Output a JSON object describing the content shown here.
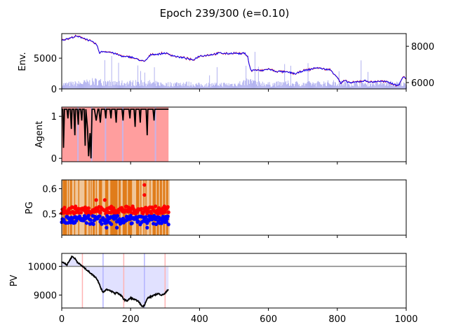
{
  "figure": {
    "title": "Epoch 239/300 (e=0.10)"
  },
  "colors": {
    "price": "#0000ff",
    "price_overlay": "#ff0000",
    "volume": "#b3b3f0",
    "agent_line": "#000000",
    "agent_fill": "#ff9e9e",
    "pg_fill": "#e07c1a",
    "pg_up": "#ff0000",
    "pg_down": "#0000ff",
    "pv_line": "#000000",
    "pv_ref": "#808080",
    "pv_fill": "#e1e1ff",
    "marker_red": "#ffb3b3",
    "marker_blue": "#b3b3ff"
  },
  "chart_data": [
    {
      "id": "env",
      "type": "line",
      "ylabel": "Env.",
      "xlim": [
        0,
        1000
      ],
      "ylim": [
        0,
        9000
      ],
      "yticks": [
        0,
        5000
      ],
      "y2lim": [
        5650,
        8700
      ],
      "y2ticks": [
        6000,
        8000
      ],
      "price": {
        "x": [
          0,
          20,
          40,
          60,
          80,
          100,
          110,
          120,
          140,
          160,
          180,
          200,
          220,
          240,
          260,
          280,
          300,
          320,
          340,
          360,
          380,
          400,
          420,
          440,
          460,
          480,
          500,
          520,
          530,
          540,
          545,
          550,
          560,
          580,
          600,
          620,
          640,
          660,
          680,
          700,
          720,
          740,
          760,
          780,
          800,
          810,
          820,
          840,
          860,
          880,
          900,
          920,
          940,
          960,
          970,
          980,
          990,
          1000
        ],
        "values": [
          8350,
          8420,
          8550,
          8480,
          8320,
          8120,
          7650,
          7720,
          7680,
          7560,
          7420,
          7420,
          7280,
          7150,
          7560,
          7560,
          7630,
          7500,
          7400,
          7350,
          7230,
          7470,
          7500,
          7560,
          7630,
          7590,
          7630,
          7580,
          7630,
          7450,
          6900,
          6650,
          6700,
          6650,
          6750,
          6620,
          6600,
          6560,
          6480,
          6650,
          6720,
          6820,
          6750,
          6700,
          6300,
          5950,
          6100,
          5980,
          6050,
          6100,
          6020,
          6080,
          6050,
          5950,
          5850,
          5900,
          6300,
          6250
        ]
      },
      "volume": {
        "x": [
          0,
          50,
          100,
          150,
          200,
          250,
          300,
          350,
          400,
          450,
          500,
          530,
          550,
          600,
          650,
          700,
          750,
          800,
          850,
          900,
          950,
          1000
        ],
        "values": [
          900,
          1100,
          1500,
          1100,
          1200,
          1200,
          900,
          1100,
          800,
          900,
          900,
          1300,
          1500,
          900,
          1100,
          1000,
          1100,
          1200,
          1000,
          1100,
          1100,
          900
        ]
      }
    },
    {
      "id": "agent",
      "type": "line",
      "ylabel": "Agent",
      "xlim": [
        0,
        1000
      ],
      "ylim": [
        -0.08,
        1.22
      ],
      "yticks": [
        0,
        1
      ],
      "x": [
        0,
        3,
        5,
        8,
        10,
        15,
        18,
        20,
        25,
        28,
        30,
        35,
        38,
        40,
        45,
        48,
        50,
        55,
        58,
        60,
        65,
        68,
        70,
        75,
        78,
        82,
        85,
        88,
        90,
        95,
        100,
        105,
        108,
        112,
        115,
        120,
        125,
        128,
        130,
        135,
        140,
        143,
        145,
        150,
        155,
        158,
        160,
        165,
        170,
        175,
        178,
        180,
        185,
        190,
        195,
        198,
        200,
        205,
        210,
        213,
        215,
        220,
        225,
        228,
        230,
        235,
        240,
        245,
        248,
        250,
        255,
        260,
        265,
        268,
        270,
        275,
        280,
        285,
        290,
        295,
        300,
        305,
        310
      ],
      "values": [
        1.17,
        1.17,
        0.25,
        1.17,
        1.17,
        1.17,
        0.95,
        1.17,
        1.17,
        0.7,
        1.17,
        1.17,
        0.55,
        1.17,
        1.17,
        0.8,
        1.17,
        1.17,
        0.9,
        1.17,
        1.17,
        0.3,
        1.17,
        0.7,
        0.05,
        0.6,
        0.0,
        1.17,
        1.17,
        1.17,
        0.9,
        1.17,
        1.17,
        0.85,
        1.17,
        1.17,
        1.17,
        0.95,
        1.17,
        1.17,
        1.17,
        0.95,
        1.17,
        1.17,
        1.17,
        0.85,
        1.17,
        1.17,
        1.17,
        1.17,
        0.9,
        1.17,
        1.17,
        1.17,
        1.17,
        0.95,
        1.17,
        1.17,
        1.17,
        0.75,
        1.17,
        1.17,
        1.17,
        0.85,
        1.17,
        1.17,
        1.17,
        1.17,
        0.55,
        1.17,
        1.17,
        1.17,
        1.17,
        0.9,
        1.17,
        1.17,
        1.17,
        1.17,
        1.17,
        1.17,
        1.17,
        1.17,
        1.17
      ]
    },
    {
      "id": "pg",
      "type": "scatter",
      "ylabel": "PG",
      "xlim": [
        0,
        1000
      ],
      "ylim": [
        0.415,
        0.635
      ],
      "yticks": [
        0.5,
        0.6
      ],
      "x_extent": [
        0,
        310
      ],
      "up_mean": 0.515,
      "down_mean": 0.475,
      "outliers": [
        {
          "x": 100,
          "y": 0.555,
          "series": "up"
        },
        {
          "x": 125,
          "y": 0.555,
          "series": "up"
        },
        {
          "x": 240,
          "y": 0.615,
          "series": "up"
        },
        {
          "x": 240,
          "y": 0.575,
          "series": "up"
        },
        {
          "x": 130,
          "y": 0.445,
          "series": "down"
        },
        {
          "x": 160,
          "y": 0.445,
          "series": "down"
        },
        {
          "x": 248,
          "y": 0.445,
          "series": "down"
        }
      ]
    },
    {
      "id": "pv",
      "type": "line",
      "ylabel": "PV",
      "xlim": [
        0,
        1000
      ],
      "ylim": [
        8550,
        10450
      ],
      "yticks": [
        9000,
        10000
      ],
      "xticks": [
        0,
        200,
        400,
        600,
        800,
        1000
      ],
      "reference": 10000,
      "markers": [
        {
          "x": 60,
          "kind": "red"
        },
        {
          "x": 120,
          "kind": "blue"
        },
        {
          "x": 180,
          "kind": "red"
        },
        {
          "x": 240,
          "kind": "blue"
        },
        {
          "x": 300,
          "kind": "red"
        }
      ],
      "x": [
        0,
        10,
        15,
        20,
        25,
        30,
        35,
        40,
        45,
        50,
        55,
        60,
        70,
        75,
        80,
        85,
        90,
        100,
        105,
        110,
        115,
        120,
        125,
        130,
        140,
        150,
        155,
        160,
        170,
        175,
        180,
        190,
        195,
        200,
        210,
        220,
        225,
        230,
        235,
        240,
        245,
        250,
        260,
        270,
        280,
        290,
        300,
        305,
        310
      ],
      "values": [
        10150,
        10100,
        10050,
        10150,
        10250,
        10350,
        10300,
        10250,
        10150,
        10100,
        10050,
        10000,
        9900,
        9850,
        9800,
        9750,
        9700,
        9600,
        9500,
        9350,
        9200,
        9100,
        9150,
        9200,
        9150,
        9100,
        9050,
        9100,
        9000,
        8950,
        8850,
        8800,
        8850,
        8900,
        8850,
        8800,
        8750,
        8650,
        8600,
        8650,
        8800,
        8900,
        8950,
        9000,
        9050,
        9000,
        9050,
        9150,
        9200
      ]
    }
  ]
}
